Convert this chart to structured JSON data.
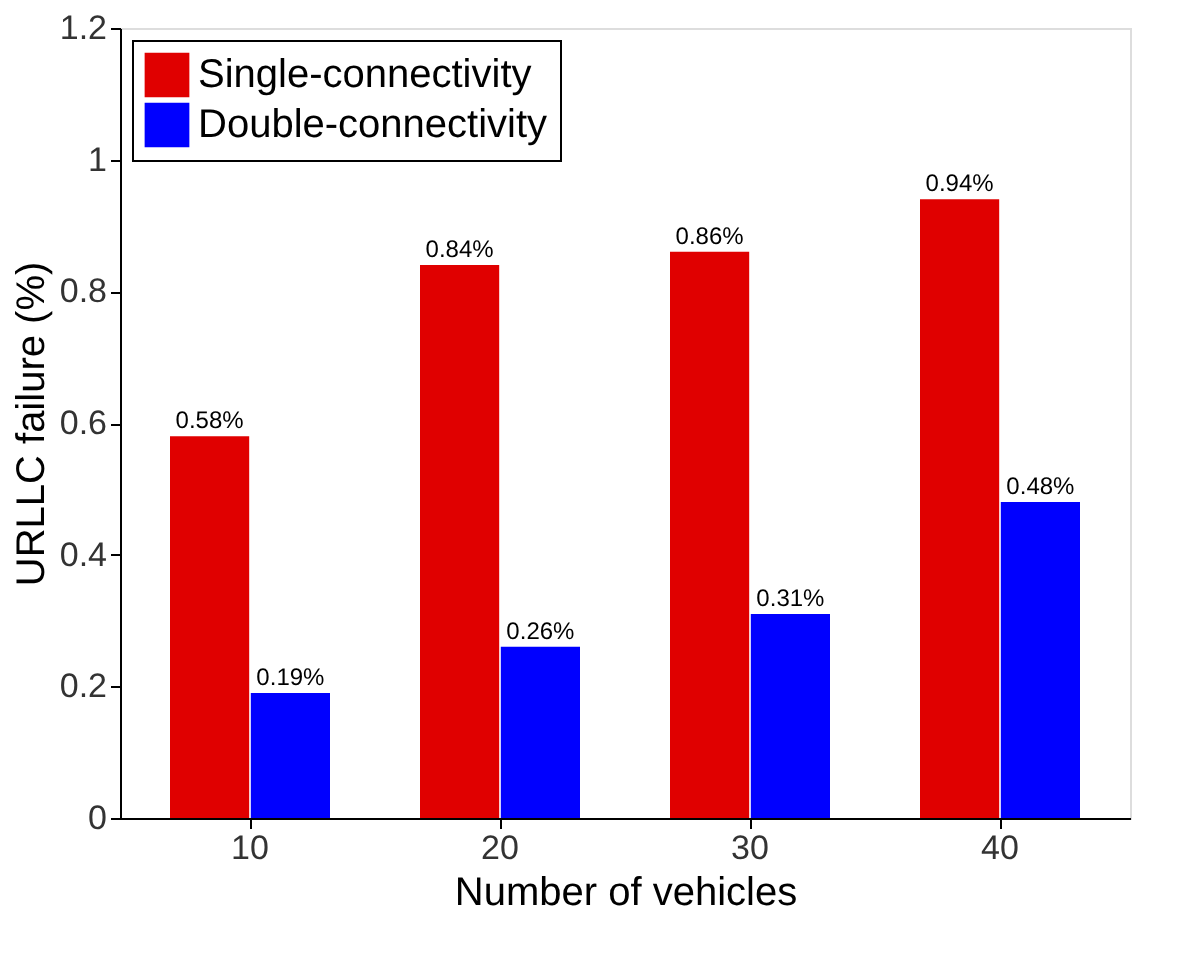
{
  "chart_data": {
    "type": "bar",
    "xlabel": "Number of vehicles",
    "ylabel": "URLLC failure (%)",
    "categories": [
      "10",
      "20",
      "30",
      "40"
    ],
    "series": [
      {
        "name": "Single-connectivity",
        "color": "#e00000",
        "values": [
          0.58,
          0.84,
          0.86,
          0.94
        ],
        "value_labels": [
          "0.58%",
          "0.84%",
          "0.86%",
          "0.94%"
        ]
      },
      {
        "name": "Double-connectivity",
        "color": "#0000ff",
        "values": [
          0.19,
          0.26,
          0.31,
          0.48
        ],
        "value_labels": [
          "0.19%",
          "0.26%",
          "0.31%",
          "0.48%"
        ]
      }
    ],
    "ylim": [
      0,
      1.2
    ],
    "yticks": [
      0,
      0.2,
      0.4,
      0.6,
      0.8,
      1,
      1.2
    ],
    "grid": false,
    "legend": "top left"
  }
}
